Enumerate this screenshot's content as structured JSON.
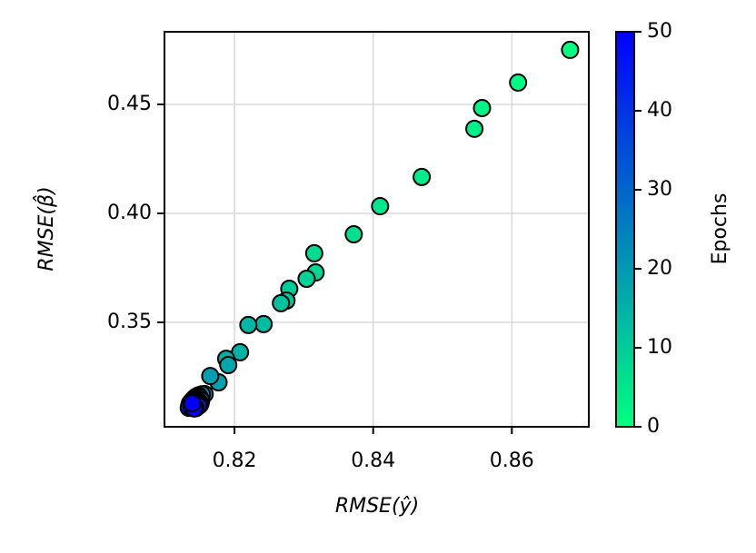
{
  "chart_data": {
    "type": "scatter",
    "xlabel": "RMSE(ŷ)",
    "ylabel": "RMSE(β̂)",
    "x": [
      0.8684,
      0.8609,
      0.8557,
      0.8546,
      0.847,
      0.841,
      0.8372,
      0.8315,
      0.8317,
      0.8304,
      0.8279,
      0.8275,
      0.8267,
      0.8242,
      0.822,
      0.8208,
      0.8188,
      0.8191,
      0.8177,
      0.8165,
      0.8157,
      0.8153,
      0.8148,
      0.8145,
      0.815,
      0.8142,
      0.8147,
      0.814,
      0.8152,
      0.8144,
      0.8138,
      0.8149,
      0.8141,
      0.8146,
      0.8136,
      0.8151,
      0.8143,
      0.8139,
      0.8147,
      0.8135,
      0.815,
      0.8142,
      0.8137,
      0.8146,
      0.814,
      0.8148,
      0.8134,
      0.8144,
      0.8138,
      0.8142,
      0.8139
    ],
    "y": [
      0.475,
      0.46,
      0.4483,
      0.4388,
      0.4167,
      0.4033,
      0.3904,
      0.3817,
      0.3729,
      0.37,
      0.3654,
      0.36,
      0.3588,
      0.3492,
      0.3488,
      0.3363,
      0.3333,
      0.3304,
      0.3225,
      0.3254,
      0.3171,
      0.317,
      0.3165,
      0.316,
      0.3155,
      0.3152,
      0.3148,
      0.3145,
      0.3142,
      0.314,
      0.3138,
      0.3136,
      0.3134,
      0.3132,
      0.313,
      0.3128,
      0.3127,
      0.3125,
      0.3124,
      0.3122,
      0.3121,
      0.312,
      0.3119,
      0.3118,
      0.3117,
      0.3116,
      0.3108,
      0.3106,
      0.311,
      0.3105,
      0.3129
    ],
    "c": [
      0,
      1,
      2,
      3,
      4,
      5,
      6,
      7,
      8,
      9,
      10,
      11,
      12,
      13,
      14,
      15,
      16,
      17,
      18,
      19,
      20,
      21,
      22,
      23,
      24,
      25,
      26,
      27,
      28,
      29,
      30,
      31,
      32,
      33,
      34,
      35,
      36,
      37,
      38,
      39,
      40,
      41,
      42,
      43,
      44,
      45,
      46,
      47,
      48,
      49,
      50
    ],
    "cmap": [
      "#00ff80",
      "#0000ff"
    ],
    "edgecolor": "#000000",
    "xlim": [
      0.8099,
      0.8711
    ],
    "ylim": [
      0.3021,
      0.4833
    ],
    "xticks": [
      0.82,
      0.84,
      0.86
    ],
    "yticks": [
      0.35,
      {
        "value": 0.4,
        "label": "0.40"
      },
      0.45
    ],
    "grid": true,
    "colorbar": {
      "label": "Epochs",
      "lim": [
        0,
        50
      ],
      "ticks": [
        0,
        10,
        20,
        30,
        40,
        50
      ]
    }
  }
}
